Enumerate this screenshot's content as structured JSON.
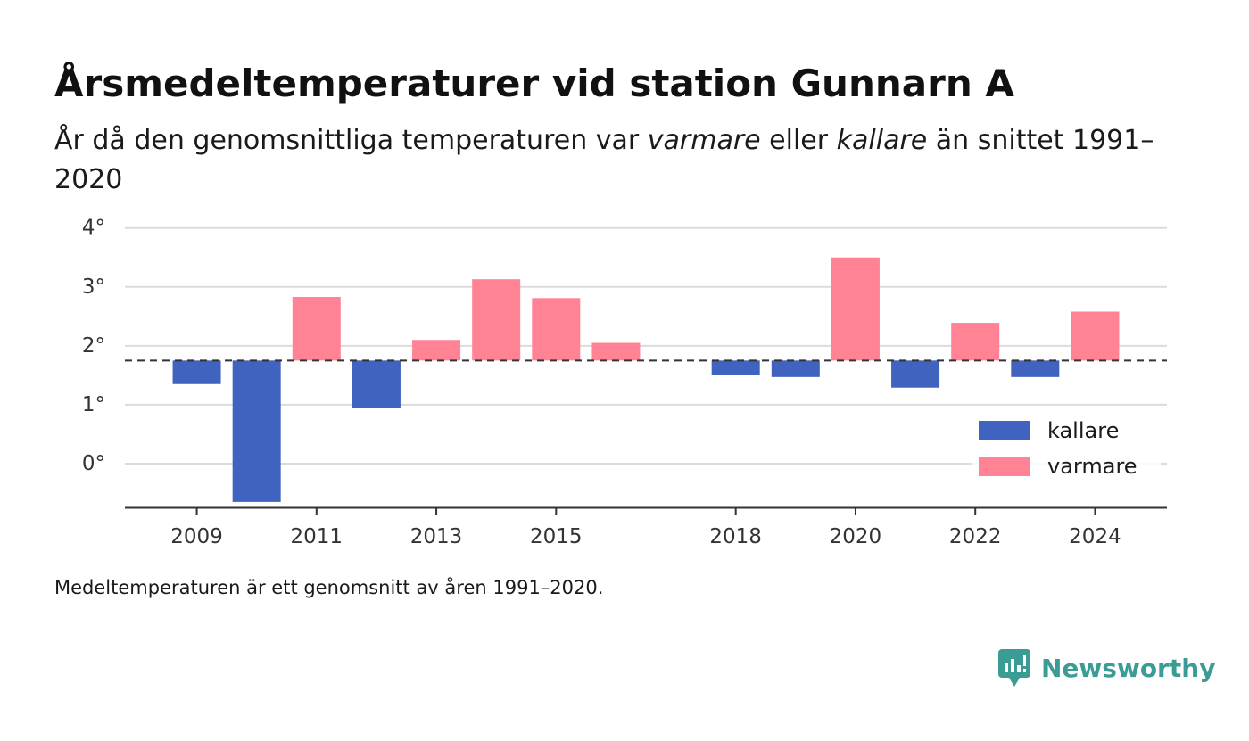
{
  "title": "Årsmedeltemperaturer vid station Gunnarn A",
  "subtitle": {
    "part1": "År då den genomsnittliga temperaturen var ",
    "warmer_word": "varmare",
    "part2": " eller ",
    "colder_word": "kallare",
    "part3": " än snittet 1991–2020"
  },
  "footnote": "Medeltemperaturen är ett genomsnitt av åren 1991–2020.",
  "brand": "Newsworthy",
  "colors": {
    "cold": "#4063bf",
    "warm": "#ff8394",
    "grid": "#dcdcdc",
    "axis": "#333333",
    "brand": "#3a9c94"
  },
  "chart_data": {
    "type": "bar",
    "baseline": 1.75,
    "baseline_style": "dashed",
    "ylim": [
      -0.75,
      4.0
    ],
    "xlim": [
      2007.8,
      2025.2
    ],
    "grid": true,
    "legend_position": "bottom-right",
    "legend": [
      {
        "label": "kallare",
        "color": "#4063bf"
      },
      {
        "label": "varmare",
        "color": "#ff8394"
      }
    ],
    "y_ticks": [
      {
        "value": 4,
        "label": "4°"
      },
      {
        "value": 3,
        "label": "3°"
      },
      {
        "value": 2,
        "label": "2°"
      },
      {
        "value": 1,
        "label": "1°"
      },
      {
        "value": 0,
        "label": "0°"
      }
    ],
    "x_ticks": [
      {
        "value": 2009,
        "label": "2009"
      },
      {
        "value": 2011,
        "label": "2011"
      },
      {
        "value": 2013,
        "label": "2013"
      },
      {
        "value": 2015,
        "label": "2015"
      },
      {
        "value": 2018,
        "label": "2018"
      },
      {
        "value": 2020,
        "label": "2020"
      },
      {
        "value": 2022,
        "label": "2022"
      },
      {
        "value": 2024,
        "label": "2024"
      }
    ],
    "bars": [
      {
        "year": 2009,
        "value": 1.35,
        "group": "kallare"
      },
      {
        "year": 2010,
        "value": -0.65,
        "group": "kallare"
      },
      {
        "year": 2011,
        "value": 2.83,
        "group": "varmare"
      },
      {
        "year": 2012,
        "value": 0.95,
        "group": "kallare"
      },
      {
        "year": 2013,
        "value": 2.1,
        "group": "varmare"
      },
      {
        "year": 2014,
        "value": 3.13,
        "group": "varmare"
      },
      {
        "year": 2015,
        "value": 2.81,
        "group": "varmare"
      },
      {
        "year": 2016,
        "value": 2.05,
        "group": "varmare"
      },
      {
        "year": 2018,
        "value": 1.51,
        "group": "kallare"
      },
      {
        "year": 2019,
        "value": 1.47,
        "group": "kallare"
      },
      {
        "year": 2020,
        "value": 3.5,
        "group": "varmare"
      },
      {
        "year": 2021,
        "value": 1.29,
        "group": "kallare"
      },
      {
        "year": 2022,
        "value": 2.39,
        "group": "varmare"
      },
      {
        "year": 2023,
        "value": 1.47,
        "group": "kallare"
      },
      {
        "year": 2024,
        "value": 2.58,
        "group": "varmare"
      }
    ]
  }
}
